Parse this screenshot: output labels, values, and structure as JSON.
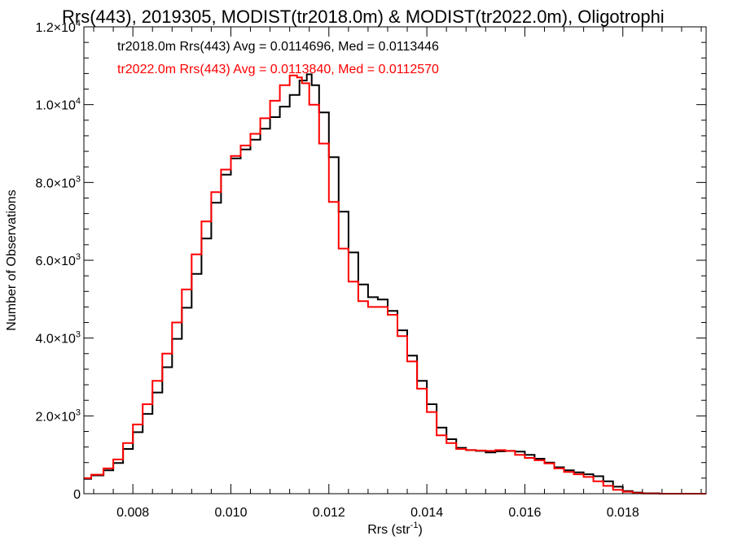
{
  "chart_data": {
    "type": "line",
    "title": "Rrs(443), 2019305, MODIST(tr2018.0m) & MODIST(tr2022.0m), Oligotrophi",
    "xlabel_main": "Rrs (str",
    "xlabel_sup": "-1",
    "xlabel_end": ")",
    "ylabel": "Number of Observations",
    "xlim": [
      0.007,
      0.0197
    ],
    "ylim": [
      0,
      12000
    ],
    "x_ticks": [
      {
        "value": 0.008,
        "label": "0.008"
      },
      {
        "value": 0.01,
        "label": "0.010"
      },
      {
        "value": 0.012,
        "label": "0.012"
      },
      {
        "value": 0.014,
        "label": "0.014"
      },
      {
        "value": 0.016,
        "label": "0.016"
      },
      {
        "value": 0.018,
        "label": "0.018"
      }
    ],
    "y_ticks": [
      {
        "value": 0,
        "base": "0",
        "exp": ""
      },
      {
        "value": 2000,
        "base": "2.0×10",
        "exp": "3"
      },
      {
        "value": 4000,
        "base": "4.0×10",
        "exp": "3"
      },
      {
        "value": 6000,
        "base": "6.0×10",
        "exp": "3"
      },
      {
        "value": 8000,
        "base": "8.0×10",
        "exp": "3"
      },
      {
        "value": 10000,
        "base": "1.0×10",
        "exp": "4"
      },
      {
        "value": 12000,
        "base": "1.2×10",
        "exp": "4"
      }
    ],
    "legend": [
      {
        "text": "tr2018.0m Rrs(443) Avg = 0.0114696, Med = 0.0113446",
        "color": "#000000"
      },
      {
        "text": "tr2022.0m Rrs(443) Avg = 0.0113840, Med = 0.0112570",
        "color": "#ff0000"
      }
    ],
    "series": [
      {
        "color": "#000000",
        "x": [
          0.007,
          0.0073,
          0.0075,
          0.0077,
          0.0079,
          0.0081,
          0.0083,
          0.0085,
          0.0087,
          0.0089,
          0.0091,
          0.0093,
          0.0095,
          0.0097,
          0.0099,
          0.0101,
          0.0103,
          0.0105,
          0.0107,
          0.0109,
          0.0111,
          0.0113,
          0.0115,
          0.0116,
          0.0117,
          0.0119,
          0.0121,
          0.0123,
          0.0125,
          0.0127,
          0.0129,
          0.0131,
          0.0133,
          0.0135,
          0.0137,
          0.0139,
          0.0141,
          0.0143,
          0.0145,
          0.0147,
          0.0149,
          0.0151,
          0.0153,
          0.0155,
          0.0157,
          0.0159,
          0.0161,
          0.0163,
          0.0165,
          0.0167,
          0.0169,
          0.0171,
          0.0173,
          0.0175,
          0.0177,
          0.0179,
          0.0181,
          0.0183,
          0.0185,
          0.019,
          0.0197
        ],
        "y": [
          380,
          470,
          600,
          790,
          1150,
          1580,
          2050,
          2600,
          3250,
          3980,
          4780,
          5650,
          6560,
          7480,
          8200,
          8620,
          8850,
          9100,
          9380,
          9680,
          9950,
          10250,
          10620,
          10780,
          10500,
          9800,
          8650,
          7250,
          6200,
          5380,
          5050,
          4990,
          4700,
          4200,
          3550,
          2900,
          2300,
          1700,
          1400,
          1180,
          1120,
          1100,
          1060,
          1090,
          1100,
          1080,
          1000,
          900,
          800,
          680,
          600,
          550,
          500,
          450,
          320,
          180,
          70,
          30,
          10,
          0,
          0
        ]
      },
      {
        "color": "#ff0000",
        "x": [
          0.007,
          0.0073,
          0.0075,
          0.0077,
          0.0079,
          0.0081,
          0.0083,
          0.0085,
          0.0087,
          0.0089,
          0.0091,
          0.0093,
          0.0095,
          0.0097,
          0.0099,
          0.0101,
          0.0103,
          0.0105,
          0.0107,
          0.0109,
          0.0111,
          0.0113,
          0.0114,
          0.0115,
          0.0117,
          0.0119,
          0.0121,
          0.0123,
          0.0125,
          0.0127,
          0.0129,
          0.0131,
          0.0133,
          0.0135,
          0.0137,
          0.0139,
          0.0141,
          0.0143,
          0.0145,
          0.0147,
          0.0149,
          0.0151,
          0.0153,
          0.0155,
          0.0157,
          0.0159,
          0.0161,
          0.0163,
          0.0165,
          0.0167,
          0.0169,
          0.0171,
          0.0173,
          0.0175,
          0.0177,
          0.0179,
          0.0181,
          0.0183,
          0.0185,
          0.019,
          0.0197
        ],
        "y": [
          400,
          490,
          650,
          880,
          1300,
          1780,
          2300,
          2900,
          3600,
          4400,
          5250,
          6150,
          7000,
          7750,
          8330,
          8680,
          8950,
          9250,
          9650,
          10100,
          10500,
          10750,
          10700,
          10550,
          10000,
          9000,
          7500,
          6300,
          5450,
          4950,
          4800,
          4800,
          4600,
          4050,
          3400,
          2700,
          2100,
          1500,
          1300,
          1150,
          1120,
          1110,
          1100,
          1120,
          1100,
          1000,
          920,
          860,
          780,
          650,
          560,
          500,
          430,
          320,
          200,
          100,
          50,
          15,
          5,
          0,
          0
        ]
      }
    ]
  }
}
